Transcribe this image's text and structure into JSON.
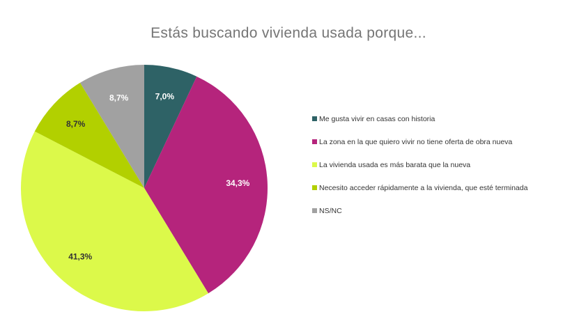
{
  "chart_data": {
    "type": "pie",
    "title": "Estás buscando vivienda usada porque...",
    "legend_position": "right",
    "slices": [
      {
        "label": "Me gusta vivir en casas con historia",
        "value": 7.0,
        "display": "7,0%",
        "color": "#2e6266"
      },
      {
        "label": "La zona en la que quiero vivir no tiene oferta de obra nueva",
        "value": 34.3,
        "display": "34,3%",
        "color": "#b5247c"
      },
      {
        "label": "La vivienda usada es más barata que la nueva",
        "value": 41.3,
        "display": "41,3%",
        "color": "#dcf94a"
      },
      {
        "label": "Necesito acceder rápidamente a la vivienda, que esté terminada",
        "value": 8.7,
        "display": "8,7%",
        "color": "#b2d000"
      },
      {
        "label": "NS/NC",
        "value": 8.7,
        "display": "8,7%",
        "color": "#a1a1a1"
      }
    ],
    "label_colors": [
      "#ffffff",
      "#ffffff",
      "#333333",
      "#333333",
      "#ffffff"
    ]
  }
}
